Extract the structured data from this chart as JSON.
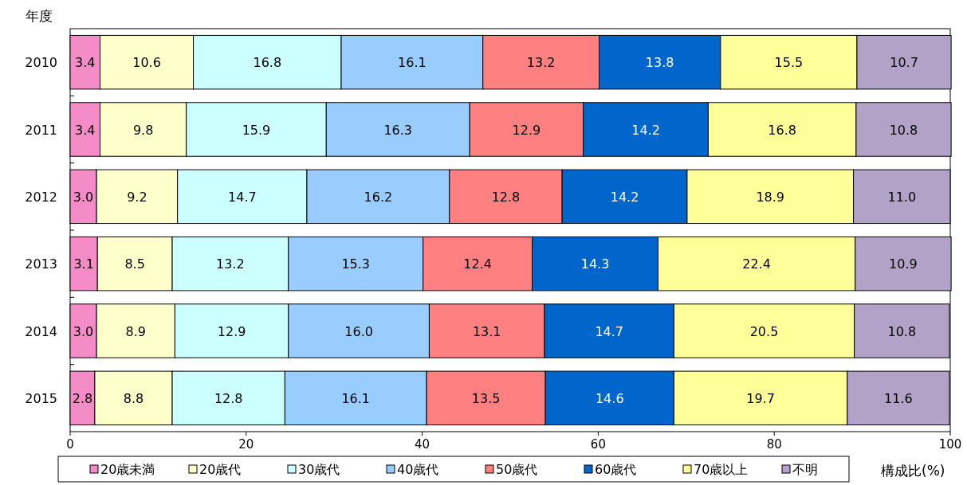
{
  "chart_data": {
    "type": "bar",
    "orientation": "horizontal",
    "stacked": true,
    "legend": "bottom",
    "grid": false,
    "ylabel": "年度",
    "xlabel": "構成比(%)",
    "categories": [
      "2010",
      "2011",
      "2012",
      "2013",
      "2014",
      "2015"
    ],
    "xlim": [
      0,
      100
    ],
    "xticks": [
      0,
      20,
      40,
      60,
      80,
      100
    ],
    "series": [
      {
        "name": "20歳未満",
        "color": "#f48cc8",
        "values": [
          3.4,
          3.4,
          3.0,
          3.1,
          3.0,
          2.8
        ],
        "value_labels": [
          "3.4",
          "3.4",
          "3.0",
          "3.1",
          "3.0",
          "2.8"
        ]
      },
      {
        "name": "20歳代",
        "color": "#ffffcc",
        "values": [
          10.6,
          9.8,
          9.2,
          8.5,
          8.9,
          8.8
        ],
        "value_labels": [
          "10.6",
          "9.8",
          "9.2",
          "8.5",
          "8.9",
          "8.8"
        ]
      },
      {
        "name": "30歳代",
        "color": "#ccffff",
        "values": [
          16.8,
          15.9,
          14.7,
          13.2,
          12.9,
          12.8
        ],
        "value_labels": [
          "16.8",
          "15.9",
          "14.7",
          "13.2",
          "12.9",
          "12.8"
        ]
      },
      {
        "name": "40歳代",
        "color": "#99ccff",
        "values": [
          16.1,
          16.3,
          16.2,
          15.3,
          16.0,
          16.1
        ],
        "value_labels": [
          "16.1",
          "16.3",
          "16.2",
          "15.3",
          "16.0",
          "16.1"
        ]
      },
      {
        "name": "50歳代",
        "color": "#ff8080",
        "values": [
          13.2,
          12.9,
          12.8,
          12.4,
          13.1,
          13.5
        ],
        "value_labels": [
          "13.2",
          "12.9",
          "12.8",
          "12.4",
          "13.1",
          "13.5"
        ]
      },
      {
        "name": "60歳代",
        "color": "#0066cc",
        "values": [
          13.8,
          14.2,
          14.2,
          14.3,
          14.7,
          14.6
        ],
        "value_labels": [
          "13.8",
          "14.2",
          "14.2",
          "14.3",
          "14.7",
          "14.6"
        ]
      },
      {
        "name": "70歳以上",
        "color": "#ffff99",
        "values": [
          15.5,
          16.8,
          18.9,
          22.4,
          20.5,
          19.7
        ],
        "value_labels": [
          "15.5",
          "16.8",
          "18.9",
          "22.4",
          "20.5",
          "19.7"
        ]
      },
      {
        "name": "不明",
        "color": "#b3a2c7",
        "values": [
          10.7,
          10.8,
          11.0,
          10.9,
          10.8,
          11.6
        ],
        "value_labels": [
          "10.7",
          "10.8",
          "11.0",
          "10.9",
          "10.8",
          "11.6"
        ]
      }
    ]
  }
}
